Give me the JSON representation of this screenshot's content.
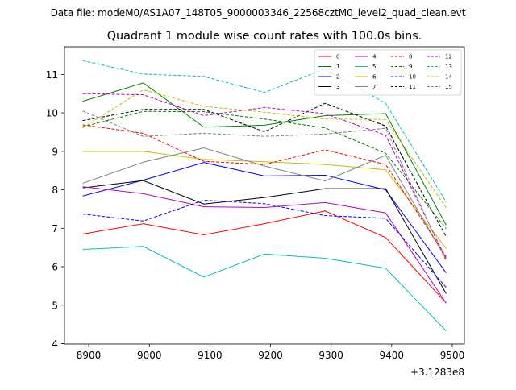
{
  "figure": {
    "suptitle": "Data file: modeM0/AS1A07_148T05_9000003346_22568cztM0_level2_quad_clean.evt",
    "offset_label": "+3.1283e8"
  },
  "chart_data": {
    "type": "line",
    "title": "Quadrant 1 module wise count rates with 100.0s bins.",
    "xlabel": "",
    "ylabel": "",
    "x_offset": 312830000,
    "x": [
      8890,
      8990,
      9090,
      9190,
      9290,
      9390,
      9490
    ],
    "x_ticks": [
      8900,
      9000,
      9100,
      9200,
      9300,
      9400,
      9500
    ],
    "xlim": [
      8860,
      9520
    ],
    "y_ticks": [
      4,
      5,
      6,
      7,
      8,
      9,
      10,
      11
    ],
    "ylim": [
      3.99,
      11.72
    ],
    "grid": false,
    "legend": {
      "placement": "top-right",
      "columns": 4
    },
    "series": [
      {
        "name": "0",
        "color": "#ff0000",
        "dash": "solid",
        "values": [
          6.85,
          7.12,
          6.83,
          7.12,
          7.45,
          6.76,
          5.06
        ]
      },
      {
        "name": "1",
        "color": "#008000",
        "dash": "solid",
        "values": [
          10.3,
          10.78,
          9.63,
          9.68,
          9.93,
          9.98,
          7.08
        ]
      },
      {
        "name": "2",
        "color": "#0000ff",
        "dash": "solid",
        "values": [
          7.84,
          8.25,
          8.71,
          8.36,
          8.38,
          8.0,
          5.84
        ]
      },
      {
        "name": "3",
        "color": "#000000",
        "dash": "solid",
        "values": [
          8.05,
          8.24,
          7.63,
          7.8,
          8.03,
          8.03,
          5.3
        ]
      },
      {
        "name": "4",
        "color": "#c000c0",
        "dash": "solid",
        "values": [
          8.08,
          7.9,
          7.56,
          7.54,
          7.67,
          7.4,
          5.05
        ]
      },
      {
        "name": "5",
        "color": "#00c0c0",
        "dash": "solid",
        "values": [
          6.45,
          6.53,
          5.73,
          6.33,
          6.22,
          5.96,
          4.33
        ]
      },
      {
        "name": "6",
        "color": "#c0c000",
        "dash": "solid",
        "values": [
          9.0,
          9.0,
          8.79,
          8.73,
          8.66,
          8.52,
          6.47
        ]
      },
      {
        "name": "7",
        "color": "#808080",
        "dash": "solid",
        "values": [
          8.17,
          8.72,
          9.09,
          8.62,
          8.23,
          8.9,
          6.2
        ]
      },
      {
        "name": "8",
        "color": "#ff0000",
        "dash": "dashed",
        "values": [
          9.69,
          9.47,
          8.74,
          8.66,
          9.04,
          8.66,
          6.26
        ]
      },
      {
        "name": "9",
        "color": "#008000",
        "dash": "dashed",
        "values": [
          9.64,
          10.04,
          10.03,
          9.84,
          9.61,
          8.95,
          6.99
        ]
      },
      {
        "name": "10",
        "color": "#0000ff",
        "dash": "dashed",
        "values": [
          7.37,
          7.19,
          7.73,
          7.64,
          7.33,
          7.26,
          5.46
        ]
      },
      {
        "name": "11",
        "color": "#000000",
        "dash": "dashed",
        "values": [
          9.8,
          10.09,
          10.09,
          9.51,
          10.25,
          9.66,
          6.78
        ]
      },
      {
        "name": "12",
        "color": "#c000c0",
        "dash": "dashed",
        "values": [
          10.5,
          10.47,
          9.93,
          10.14,
          9.98,
          9.42,
          6.2
        ]
      },
      {
        "name": "13",
        "color": "#00c0c0",
        "dash": "dashed",
        "values": [
          11.36,
          11.01,
          10.95,
          10.53,
          11.15,
          10.25,
          7.68
        ]
      },
      {
        "name": "14",
        "color": "#c0c000",
        "dash": "dashed",
        "values": [
          9.61,
          10.6,
          10.17,
          10.02,
          9.84,
          9.83,
          7.53
        ]
      },
      {
        "name": "15",
        "color": "#808080",
        "dash": "dashed",
        "values": [
          10.05,
          9.39,
          9.47,
          9.39,
          9.45,
          9.6,
          6.13
        ]
      }
    ]
  }
}
